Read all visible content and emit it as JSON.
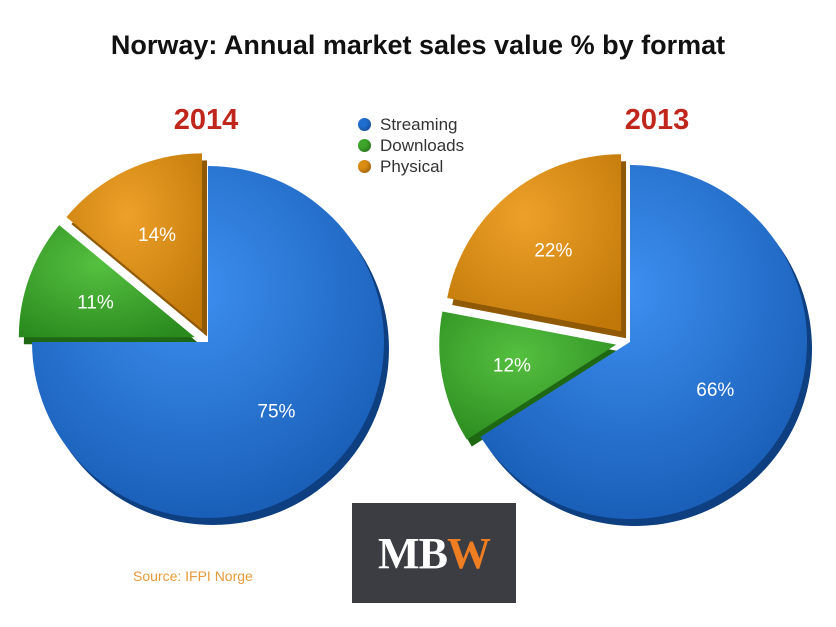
{
  "title": "Norway: Annual market sales value % by format",
  "legend": [
    {
      "label": "Streaming",
      "color": "#1f6fd1"
    },
    {
      "label": "Downloads",
      "color": "#3ea52c"
    },
    {
      "label": "Physical",
      "color": "#db8c12"
    }
  ],
  "source": "Source:  IFPI Norge",
  "logo": {
    "text_main": "MB",
    "text_accent": "W"
  },
  "colors": {
    "year": "#c0261b",
    "streaming": "#1f6fd1",
    "downloads": "#3ea52c",
    "physical": "#db8c12"
  },
  "chart_data": [
    {
      "type": "pie",
      "title": "2014",
      "categories": [
        "Streaming",
        "Downloads",
        "Physical"
      ],
      "values": [
        75,
        11,
        14
      ],
      "labels": [
        "75%",
        "11%",
        "14%"
      ]
    },
    {
      "type": "pie",
      "title": "2013",
      "categories": [
        "Streaming",
        "Downloads",
        "Physical"
      ],
      "values": [
        66,
        12,
        22
      ],
      "labels": [
        "66%",
        "12%",
        "22%"
      ]
    }
  ]
}
